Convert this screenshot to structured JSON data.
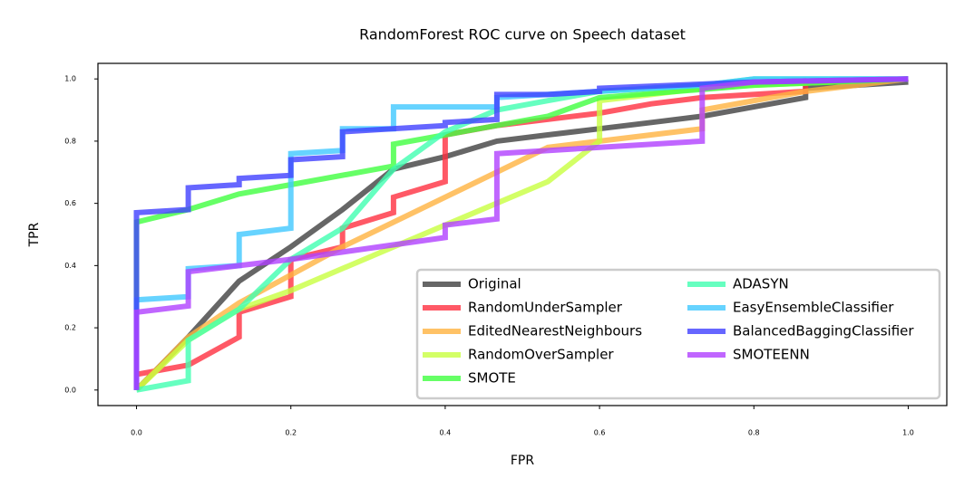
{
  "chart_data": {
    "type": "line",
    "title": "RandomForest ROC curve on Speech dataset",
    "xlabel": "FPR",
    "ylabel": "TPR",
    "xlim": [
      -0.05,
      1.05
    ],
    "ylim": [
      -0.05,
      1.05
    ],
    "xticks": [
      {
        "value": 0,
        "label": "0.0"
      },
      0.2,
      0.4,
      0.6,
      0.8,
      {
        "value": 1,
        "label": "1.0"
      }
    ],
    "yticks": [
      {
        "value": 0,
        "label": "0.0"
      },
      0.2,
      0.4,
      0.6,
      0.8,
      {
        "value": 1,
        "label": "1.0"
      }
    ],
    "grid": false,
    "legend": "lower right",
    "series": [
      {
        "name": "Original",
        "color": "#404040",
        "x": [
          0,
          0.067,
          0.133,
          0.2,
          0.267,
          0.333,
          0.4,
          0.467,
          0.533,
          0.6,
          0.667,
          0.733,
          0.8,
          0.867,
          0.867,
          0.933,
          1
        ],
        "values": [
          0,
          0.17,
          0.35,
          0.46,
          0.58,
          0.71,
          0.75,
          0.8,
          0.82,
          0.84,
          0.86,
          0.88,
          0.91,
          0.94,
          0.97,
          0.98,
          0.99
        ]
      },
      {
        "name": "RandomUnderSampler",
        "color": "#ff3040",
        "x": [
          0,
          0,
          0.067,
          0.133,
          0.133,
          0.2,
          0.2,
          0.267,
          0.267,
          0.333,
          0.333,
          0.4,
          0.4,
          0.467,
          0.6,
          0.667,
          0.733,
          0.867,
          0.867,
          1
        ],
        "values": [
          0,
          0.05,
          0.08,
          0.17,
          0.25,
          0.3,
          0.42,
          0.46,
          0.52,
          0.57,
          0.62,
          0.67,
          0.82,
          0.85,
          0.89,
          0.92,
          0.94,
          0.96,
          0.99,
          1
        ]
      },
      {
        "name": "EditedNearestNeighbours",
        "color": "#ffb340",
        "x": [
          0,
          0.067,
          0.133,
          0.2,
          0.267,
          0.4,
          0.533,
          0.6,
          0.733,
          0.733,
          0.867,
          0.933,
          1
        ],
        "values": [
          0,
          0.17,
          0.28,
          0.37,
          0.46,
          0.62,
          0.78,
          0.8,
          0.84,
          0.9,
          0.96,
          0.98,
          1
        ]
      },
      {
        "name": "RandomOverSampler",
        "color": "#c8ff40",
        "x": [
          0,
          0.067,
          0.133,
          0.2,
          0.333,
          0.533,
          0.6,
          0.6,
          0.667,
          0.733,
          0.8,
          1
        ],
        "values": [
          0,
          0.16,
          0.26,
          0.32,
          0.46,
          0.67,
          0.8,
          0.93,
          0.95,
          0.97,
          0.98,
          1
        ]
      },
      {
        "name": "SMOTE",
        "color": "#40ff40",
        "x": [
          0,
          0,
          0.067,
          0.133,
          0.2,
          0.333,
          0.333,
          0.4,
          0.533,
          0.6,
          0.8,
          1
        ],
        "values": [
          0,
          0.54,
          0.58,
          0.63,
          0.66,
          0.72,
          0.79,
          0.82,
          0.88,
          0.94,
          0.98,
          1
        ]
      },
      {
        "name": "ADASYN",
        "color": "#40ffb0",
        "x": [
          0,
          0.067,
          0.067,
          0.133,
          0.2,
          0.267,
          0.333,
          0.4,
          0.467,
          0.533,
          0.6,
          0.733,
          0.8,
          1
        ],
        "values": [
          0,
          0.03,
          0.16,
          0.26,
          0.42,
          0.52,
          0.71,
          0.83,
          0.9,
          0.93,
          0.96,
          0.98,
          1,
          1
        ]
      },
      {
        "name": "EasyEnsembleClassifier",
        "color": "#40c8ff",
        "x": [
          0,
          0,
          0.067,
          0.067,
          0.133,
          0.133,
          0.2,
          0.2,
          0.267,
          0.267,
          0.333,
          0.333,
          0.467,
          0.467,
          0.6,
          0.733,
          0.8,
          1
        ],
        "values": [
          0,
          0.29,
          0.3,
          0.39,
          0.4,
          0.5,
          0.52,
          0.76,
          0.77,
          0.84,
          0.84,
          0.91,
          0.91,
          0.94,
          0.96,
          0.98,
          1,
          1
        ]
      },
      {
        "name": "BalancedBaggingClassifier",
        "color": "#4040ff",
        "x": [
          0,
          0,
          0.067,
          0.067,
          0.133,
          0.133,
          0.2,
          0.2,
          0.267,
          0.267,
          0.4,
          0.4,
          0.467,
          0.467,
          0.533,
          0.6,
          0.6,
          0.8,
          1
        ],
        "values": [
          0,
          0.57,
          0.58,
          0.65,
          0.66,
          0.68,
          0.69,
          0.74,
          0.75,
          0.83,
          0.85,
          0.86,
          0.87,
          0.95,
          0.95,
          0.96,
          0.97,
          0.99,
          1
        ]
      },
      {
        "name": "SMOTEENN",
        "color": "#b040ff",
        "x": [
          0,
          0,
          0.067,
          0.067,
          0.133,
          0.2,
          0.4,
          0.4,
          0.467,
          0.467,
          0.733,
          0.733,
          0.8,
          1
        ],
        "values": [
          0,
          0.25,
          0.27,
          0.38,
          0.4,
          0.42,
          0.49,
          0.53,
          0.55,
          0.76,
          0.8,
          0.97,
          0.99,
          1
        ]
      }
    ]
  }
}
